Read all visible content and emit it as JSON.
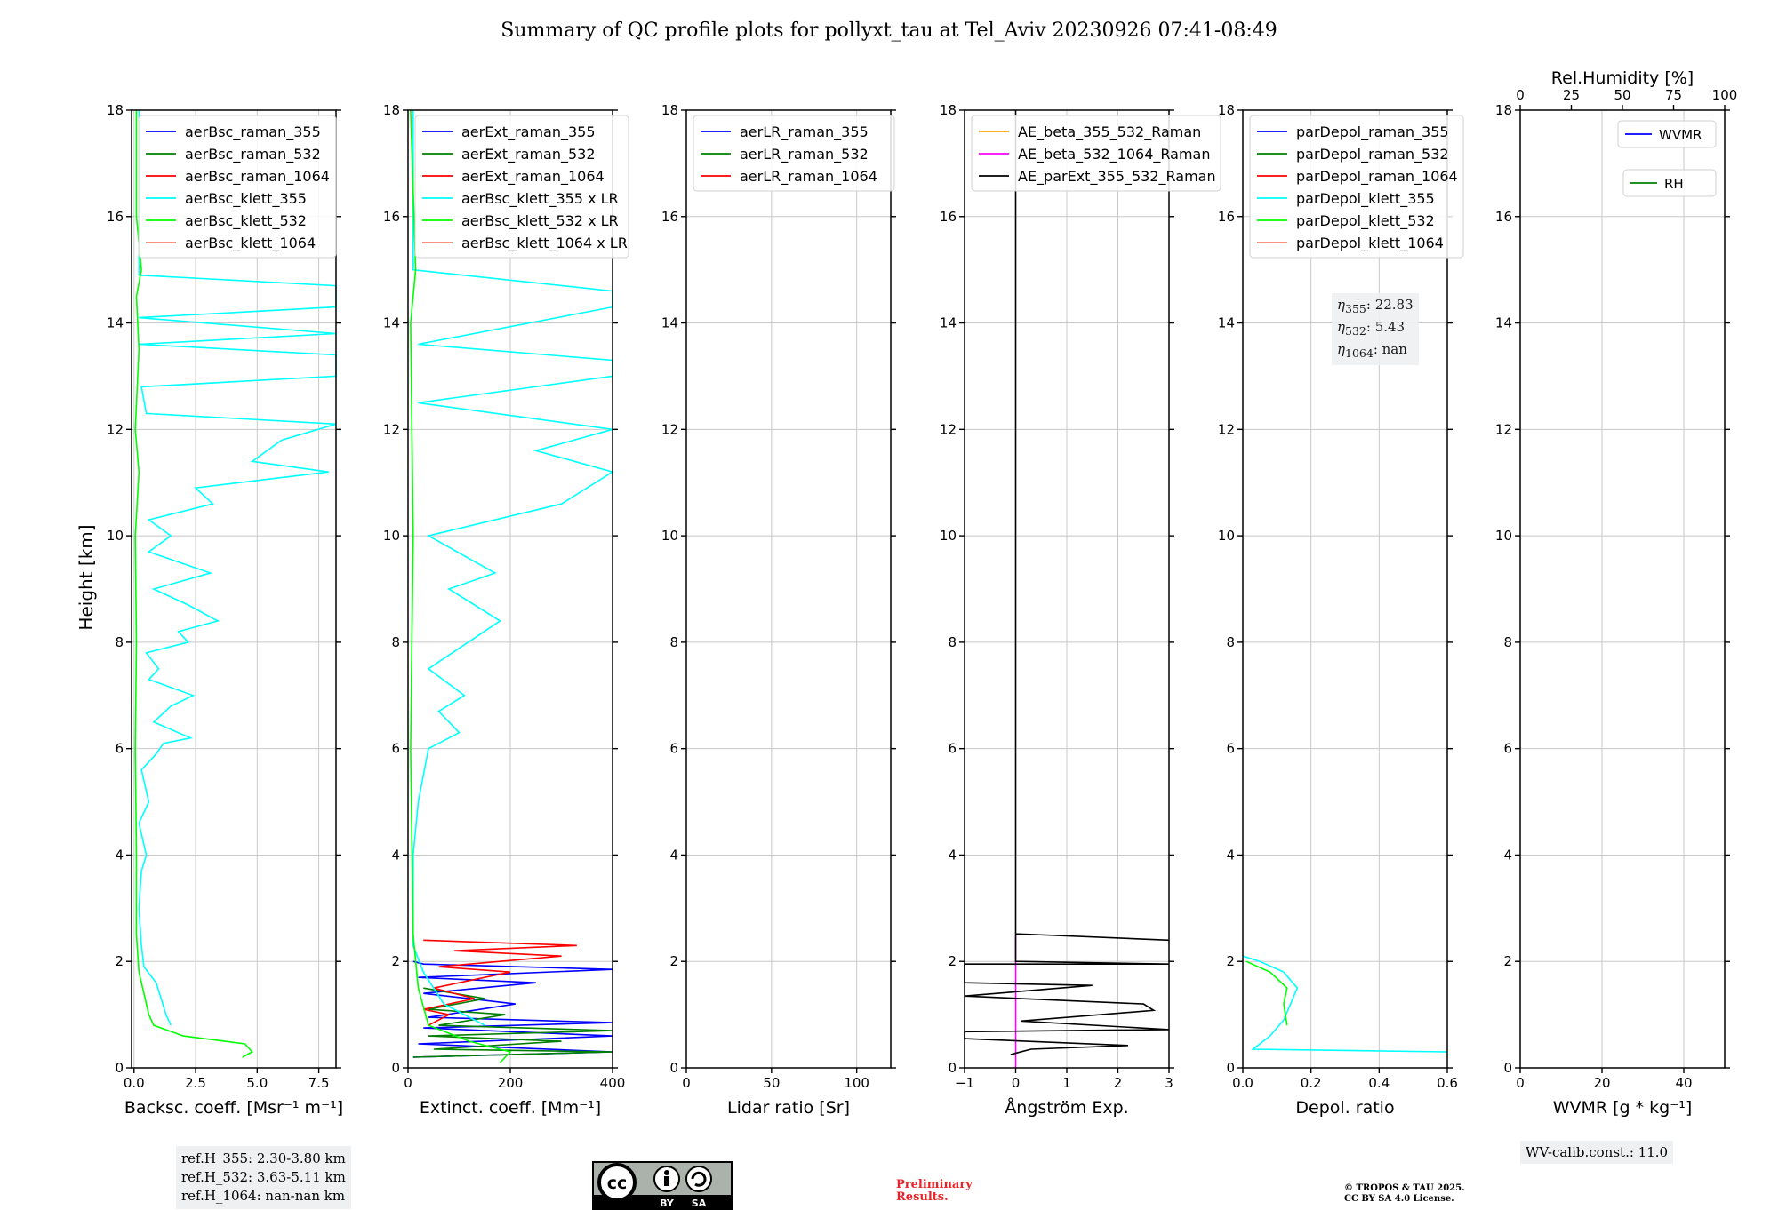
{
  "title": "Summary of QC profile plots for pollyxt_tau at Tel_Aviv 20230926 07:41-08:49",
  "ylabel": "Height [km]",
  "colors": {
    "blue": "#0000ff",
    "green": "#008000",
    "red": "#ff0000",
    "cyan": "#00ffff",
    "lime": "#00ff00",
    "salmon": "#fa8072",
    "orange": "#ffa500",
    "magenta": "#ff00ff",
    "black": "#000000",
    "grid": "#c8c8c8"
  },
  "ref_heights": [
    "ref.H_355: 2.30-3.80 km",
    "ref.H_532: 3.63-5.11 km",
    "ref.H_1064: nan-nan km"
  ],
  "eta_labels": [
    "355",
    "532",
    "1064"
  ],
  "eta_values": [
    "22.83",
    "5.43",
    "nan"
  ],
  "wv_calib": "WV-calib.const.: 11.0",
  "license_tags": [
    "BY",
    "SA"
  ],
  "preliminary": [
    "Preliminary",
    "Results."
  ],
  "copyright": [
    "© TROPOS & TAU 2025.",
    "CC BY SA 4.0 License."
  ],
  "chart_data": [
    {
      "type": "line",
      "xlabel": "Backsc. coeff. [Msr⁻¹ m⁻¹]",
      "xlim": [
        -0.1,
        8.2
      ],
      "ylim": [
        0,
        18
      ],
      "xticks": [
        0,
        2.5,
        5,
        7.5
      ],
      "xtick_labels": [
        "0.0",
        "2.5",
        "5.0",
        "7.5"
      ],
      "yticks": [
        0,
        2,
        4,
        6,
        8,
        10,
        12,
        14,
        16,
        18
      ],
      "legend": [
        "aerBsc_raman_355",
        "aerBsc_raman_532",
        "aerBsc_raman_1064",
        "aerBsc_klett_355",
        "aerBsc_klett_532",
        "aerBsc_klett_1064"
      ],
      "series": [
        {
          "name": "aerBsc_klett_355",
          "color": "#00ffff",
          "points": [
            [
              1.5,
              0.8
            ],
            [
              1.3,
              1.0
            ],
            [
              1.1,
              1.3
            ],
            [
              0.9,
              1.6
            ],
            [
              0.4,
              1.9
            ],
            [
              0.3,
              2.3
            ],
            [
              0.2,
              3.0
            ],
            [
              0.3,
              3.7
            ],
            [
              0.5,
              4.0
            ],
            [
              0.2,
              4.6
            ],
            [
              0.6,
              5.0
            ],
            [
              0.3,
              5.6
            ],
            [
              0.9,
              5.9
            ],
            [
              1.2,
              6.1
            ],
            [
              2.3,
              6.2
            ],
            [
              0.8,
              6.5
            ],
            [
              1.5,
              6.8
            ],
            [
              2.4,
              7.0
            ],
            [
              0.6,
              7.3
            ],
            [
              1.0,
              7.5
            ],
            [
              0.5,
              7.8
            ],
            [
              2.2,
              8.0
            ],
            [
              1.8,
              8.2
            ],
            [
              3.4,
              8.4
            ],
            [
              2.2,
              8.7
            ],
            [
              0.8,
              9.0
            ],
            [
              3.1,
              9.3
            ],
            [
              0.6,
              9.7
            ],
            [
              1.5,
              10.0
            ],
            [
              0.6,
              10.3
            ],
            [
              3.2,
              10.6
            ],
            [
              2.5,
              10.9
            ],
            [
              7.9,
              11.2
            ],
            [
              4.8,
              11.4
            ],
            [
              6.0,
              11.8
            ],
            [
              8.2,
              12.1
            ],
            [
              0.5,
              12.3
            ],
            [
              0.3,
              12.8
            ],
            [
              8.2,
              13.0
            ],
            [
              8.2,
              13.2
            ],
            [
              8.2,
              13.4
            ],
            [
              0.2,
              13.6
            ],
            [
              8.2,
              13.8
            ],
            [
              0.2,
              14.1
            ],
            [
              8.2,
              14.3
            ],
            [
              8.2,
              14.5
            ],
            [
              8.2,
              14.7
            ],
            [
              0.2,
              14.9
            ],
            [
              0.2,
              16.0
            ],
            [
              0.2,
              18.0
            ]
          ]
        },
        {
          "name": "aerBsc_klett_532",
          "color": "#00ff00",
          "points": [
            [
              4.4,
              0.2
            ],
            [
              4.8,
              0.3
            ],
            [
              4.5,
              0.45
            ],
            [
              2.0,
              0.6
            ],
            [
              0.8,
              0.8
            ],
            [
              0.6,
              1.0
            ],
            [
              0.4,
              1.4
            ],
            [
              0.2,
              1.8
            ],
            [
              0.1,
              2.5
            ],
            [
              0.1,
              4.0
            ],
            [
              0.05,
              6.0
            ],
            [
              0.1,
              8.0
            ],
            [
              0.05,
              10.0
            ],
            [
              0.2,
              11.2
            ],
            [
              0.05,
              12.0
            ],
            [
              0.2,
              13.5
            ],
            [
              0.1,
              14.5
            ],
            [
              0.3,
              15.0
            ],
            [
              0.1,
              16.0
            ],
            [
              0.1,
              18.0
            ]
          ]
        }
      ]
    },
    {
      "type": "line",
      "xlabel": "Extinct. coeff. [Mm⁻¹]",
      "xlim": [
        0,
        400
      ],
      "ylim": [
        0,
        18
      ],
      "xticks": [
        0,
        200,
        400
      ],
      "xtick_labels": [
        "0",
        "200",
        "400"
      ],
      "yticks": [
        0,
        2,
        4,
        6,
        8,
        10,
        12,
        14,
        16,
        18
      ],
      "legend": [
        "aerExt_raman_355",
        "aerExt_raman_532",
        "aerExt_raman_1064",
        "aerBsc_klett_355 x LR",
        "aerBsc_klett_532 x LR",
        "aerBsc_klett_1064 x LR"
      ],
      "series": [
        {
          "name": "aerExt_raman_355",
          "color": "#0000ff",
          "points": [
            [
              10,
              0.2
            ],
            [
              400,
              0.3
            ],
            [
              20,
              0.45
            ],
            [
              400,
              0.6
            ],
            [
              30,
              0.75
            ],
            [
              400,
              0.85
            ],
            [
              40,
              0.95
            ],
            [
              210,
              1.2
            ],
            [
              30,
              1.4
            ],
            [
              250,
              1.6
            ],
            [
              20,
              1.7
            ],
            [
              400,
              1.85
            ],
            [
              30,
              1.95
            ],
            [
              10,
              2.0
            ]
          ]
        },
        {
          "name": "aerExt_raman_532",
          "color": "#008000",
          "points": [
            [
              10,
              0.2
            ],
            [
              400,
              0.3
            ],
            [
              50,
              0.35
            ],
            [
              300,
              0.5
            ],
            [
              40,
              0.6
            ],
            [
              400,
              0.7
            ],
            [
              60,
              0.8
            ],
            [
              190,
              1.0
            ],
            [
              40,
              1.1
            ],
            [
              150,
              1.3
            ],
            [
              30,
              1.5
            ]
          ]
        },
        {
          "name": "aerExt_raman_1064",
          "color": "#ff0000",
          "points": [
            [
              40,
              0.8
            ],
            [
              80,
              1.0
            ],
            [
              30,
              1.1
            ],
            [
              130,
              1.3
            ],
            [
              50,
              1.5
            ],
            [
              200,
              1.8
            ],
            [
              60,
              1.9
            ],
            [
              300,
              2.1
            ],
            [
              90,
              2.2
            ],
            [
              330,
              2.3
            ],
            [
              30,
              2.4
            ]
          ]
        },
        {
          "name": "aerBsc_klett_355 x LR",
          "color": "#00ffff",
          "points": [
            [
              150,
              0.8
            ],
            [
              70,
              1.2
            ],
            [
              30,
              1.8
            ],
            [
              10,
              2.3
            ],
            [
              10,
              4.0
            ],
            [
              20,
              5.0
            ],
            [
              40,
              6.0
            ],
            [
              100,
              6.3
            ],
            [
              60,
              6.7
            ],
            [
              110,
              7.0
            ],
            [
              40,
              7.5
            ],
            [
              180,
              8.4
            ],
            [
              80,
              9.0
            ],
            [
              170,
              9.3
            ],
            [
              40,
              10.0
            ],
            [
              300,
              10.6
            ],
            [
              400,
              11.2
            ],
            [
              250,
              11.6
            ],
            [
              400,
              12.0
            ],
            [
              20,
              12.5
            ],
            [
              400,
              13.0
            ],
            [
              400,
              13.3
            ],
            [
              20,
              13.6
            ],
            [
              400,
              14.3
            ],
            [
              400,
              14.6
            ],
            [
              10,
              15.0
            ],
            [
              10,
              18.0
            ]
          ]
        },
        {
          "name": "aerBsc_klett_532 x LR",
          "color": "#00ff00",
          "points": [
            [
              180,
              0.1
            ],
            [
              200,
              0.3
            ],
            [
              120,
              0.5
            ],
            [
              40,
              0.8
            ],
            [
              20,
              1.5
            ],
            [
              10,
              2.5
            ],
            [
              5,
              6.0
            ],
            [
              10,
              10.0
            ],
            [
              5,
              14.0
            ],
            [
              15,
              15.0
            ],
            [
              5,
              18.0
            ]
          ]
        }
      ]
    },
    {
      "type": "line",
      "xlabel": "Lidar ratio [Sr]",
      "xlim": [
        0,
        120
      ],
      "ylim": [
        0,
        18
      ],
      "xticks": [
        0,
        50,
        100
      ],
      "xtick_labels": [
        "0",
        "50",
        "100"
      ],
      "yticks": [
        0,
        2,
        4,
        6,
        8,
        10,
        12,
        14,
        16,
        18
      ],
      "legend": [
        "aerLR_raman_355",
        "aerLR_raman_532",
        "aerLR_raman_1064"
      ],
      "series": []
    },
    {
      "type": "line",
      "xlabel": "Ångström Exp.",
      "xlim": [
        -1,
        3
      ],
      "ylim": [
        0,
        18
      ],
      "xticks": [
        -1,
        0,
        1,
        2,
        3
      ],
      "xtick_labels": [
        "−1",
        "0",
        "1",
        "2",
        "3"
      ],
      "yticks": [
        0,
        2,
        4,
        6,
        8,
        10,
        12,
        14,
        16,
        18
      ],
      "legend": [
        "AE_beta_355_532_Raman",
        "AE_beta_532_1064_Raman",
        "AE_parExt_355_532_Raman"
      ],
      "series": [
        {
          "name": "AE_beta_532_1064_Raman",
          "color": "#ff00ff",
          "points": [
            [
              0,
              0
            ],
            [
              0,
              2.5
            ]
          ]
        },
        {
          "name": "AE_parExt_355_532_Raman",
          "color": "#000000",
          "points": [
            [
              -0.1,
              0.25
            ],
            [
              0.3,
              0.35
            ],
            [
              2.2,
              0.42
            ],
            [
              -1,
              0.55
            ],
            [
              -1,
              0.68
            ],
            [
              3,
              0.72
            ],
            [
              0.1,
              0.88
            ],
            [
              2.7,
              1.08
            ],
            [
              2.5,
              1.2
            ],
            [
              -1,
              1.35
            ],
            [
              1.5,
              1.55
            ],
            [
              -1,
              1.6
            ],
            [
              -1,
              1.95
            ],
            [
              3,
              1.95
            ],
            [
              0,
              2.0
            ],
            [
              0,
              2.52
            ],
            [
              3,
              2.4
            ],
            [
              0,
              2.52
            ],
            [
              0,
              18
            ]
          ]
        }
      ]
    },
    {
      "type": "line",
      "xlabel": "Depol. ratio",
      "xlim": [
        0,
        0.6
      ],
      "ylim": [
        0,
        18
      ],
      "xticks": [
        0,
        0.2,
        0.4,
        0.6
      ],
      "xtick_labels": [
        "0.0",
        "0.2",
        "0.4",
        "0.6"
      ],
      "yticks": [
        0,
        2,
        4,
        6,
        8,
        10,
        12,
        14,
        16,
        18
      ],
      "legend": [
        "parDepol_raman_355",
        "parDepol_raman_532",
        "parDepol_raman_1064",
        "parDepol_klett_355",
        "parDepol_klett_532",
        "parDepol_klett_1064"
      ],
      "series": [
        {
          "name": "parDepol_klett_355",
          "color": "#00ffff",
          "points": [
            [
              0.6,
              0.3
            ],
            [
              0.03,
              0.35
            ],
            [
              0.08,
              0.6
            ],
            [
              0.12,
              0.9
            ],
            [
              0.14,
              1.2
            ],
            [
              0.16,
              1.5
            ],
            [
              0.12,
              1.8
            ],
            [
              0.05,
              2.0
            ],
            [
              0.0,
              2.1
            ]
          ]
        },
        {
          "name": "parDepol_klett_532",
          "color": "#00ff00",
          "points": [
            [
              0.13,
              0.8
            ],
            [
              0.12,
              1.2
            ],
            [
              0.13,
              1.5
            ],
            [
              0.08,
              1.8
            ],
            [
              0.01,
              2.0
            ]
          ]
        }
      ]
    },
    {
      "type": "line",
      "xlabel": "WVMR [g * kg⁻¹]",
      "xlim": [
        0,
        50
      ],
      "ylim": [
        0,
        18
      ],
      "xticks": [
        0,
        20,
        40
      ],
      "xtick_labels": [
        "0",
        "20",
        "40"
      ],
      "yticks": [
        0,
        2,
        4,
        6,
        8,
        10,
        12,
        14,
        16,
        18
      ],
      "x2label": "Rel.Humidity [%]",
      "x2ticks": [
        0,
        25,
        50,
        75,
        100
      ],
      "legend": [
        "WVMR",
        "RH"
      ],
      "series": []
    }
  ]
}
